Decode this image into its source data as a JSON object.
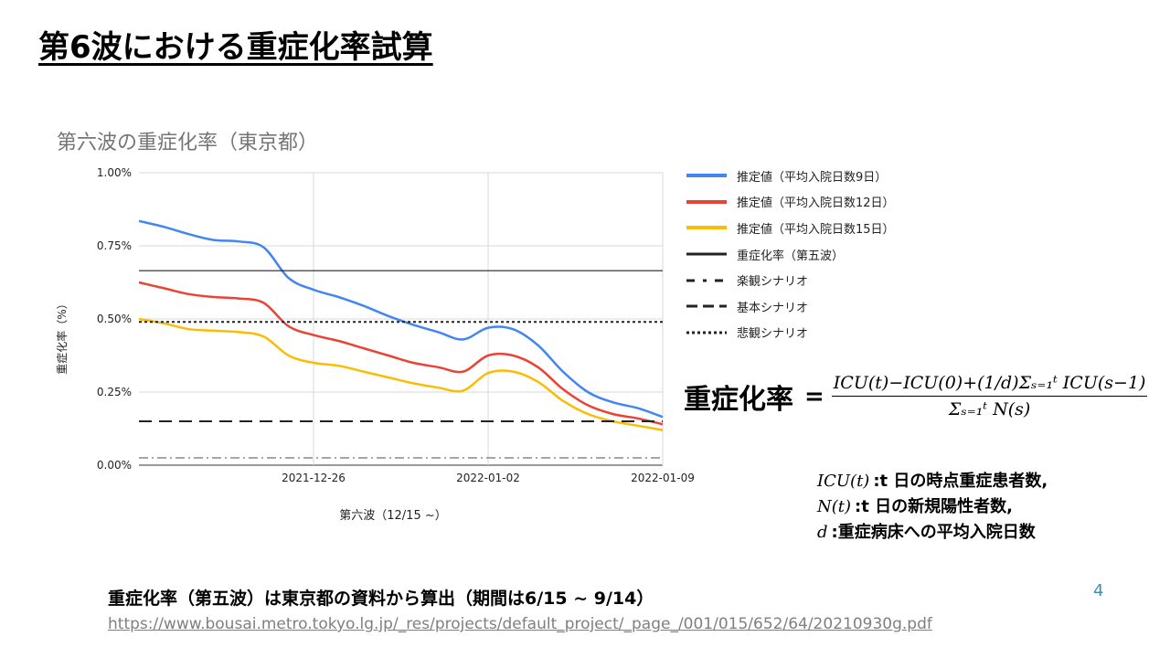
{
  "slide": {
    "title": "第6波における重症化率試算",
    "page_number": "4",
    "note": "重症化率（第五波）は東京都の資料から算出（期間は6/15 ~ 9/14）",
    "source_url": "https://www.bousai.metro.tokyo.lg.jp/_res/projects/default_project/_page_/001/015/652/64/20210930g.pdf"
  },
  "formula": {
    "lhs": "重症化率",
    "equals": "=",
    "numerator": "ICU(t)−ICU(0)+(1/d)Σₛ₌₁ᵗ ICU(s−1)",
    "denominator": "Σₛ₌₁ᵗ N(s)"
  },
  "definitions": [
    {
      "symbol": "ICU(t)",
      "text": ":t 日の時点重症患者数,"
    },
    {
      "symbol": "N(t)",
      "text": ":t 日の新規陽性者数,"
    },
    {
      "symbol": "d",
      "text": ":重症病床への平均入院日数"
    }
  ],
  "colors": {
    "blue": "#4285f4",
    "red": "#ea4335",
    "yellow": "#fbbc04",
    "black": "#222222",
    "grid": "#d9d9d9",
    "dashdot": "#888888"
  },
  "chart_data": {
    "type": "line",
    "title": "第六波の重症化率（東京都）",
    "xlabel": "第六波（12/15 ~）",
    "ylabel": "重症化率（%）",
    "x_range": [
      "2021-12-19",
      "2022-01-09"
    ],
    "x_ticks": [
      "2021-12-26",
      "2022-01-02",
      "2022-01-09"
    ],
    "ylim": [
      0,
      1.0
    ],
    "y_ticks": [
      0,
      0.25,
      0.5,
      0.75,
      1.0
    ],
    "y_tick_labels": [
      "0.00%",
      "0.25%",
      "0.50%",
      "0.75%",
      "1.00%"
    ],
    "grid": true,
    "legend_position": "right",
    "x": [
      "2021-12-19",
      "2021-12-20",
      "2021-12-21",
      "2021-12-22",
      "2021-12-23",
      "2021-12-24",
      "2021-12-25",
      "2021-12-26",
      "2021-12-27",
      "2021-12-28",
      "2021-12-29",
      "2021-12-30",
      "2021-12-31",
      "2022-01-01",
      "2022-01-02",
      "2022-01-03",
      "2022-01-04",
      "2022-01-05",
      "2022-01-06",
      "2022-01-07",
      "2022-01-08",
      "2022-01-09"
    ],
    "series": [
      {
        "name": "推定値（平均入院日数9日）",
        "style": "solid",
        "color": "blue",
        "values": [
          0.835,
          0.815,
          0.79,
          0.77,
          0.765,
          0.745,
          0.64,
          0.6,
          0.575,
          0.545,
          0.51,
          0.48,
          0.455,
          0.43,
          0.47,
          0.465,
          0.41,
          0.32,
          0.25,
          0.215,
          0.195,
          0.165
        ]
      },
      {
        "name": "推定値（平均入院日数12日）",
        "style": "solid",
        "color": "red",
        "values": [
          0.625,
          0.605,
          0.585,
          0.575,
          0.57,
          0.555,
          0.475,
          0.445,
          0.425,
          0.4,
          0.375,
          0.35,
          0.335,
          0.32,
          0.375,
          0.375,
          0.335,
          0.26,
          0.205,
          0.175,
          0.16,
          0.14
        ]
      },
      {
        "name": "推定値（平均入院日数15日）",
        "style": "solid",
        "color": "yellow",
        "values": [
          0.5,
          0.485,
          0.465,
          0.46,
          0.455,
          0.44,
          0.375,
          0.35,
          0.34,
          0.32,
          0.3,
          0.28,
          0.265,
          0.255,
          0.315,
          0.32,
          0.285,
          0.22,
          0.175,
          0.15,
          0.135,
          0.12
        ]
      },
      {
        "name": "重症化率（第五波）",
        "style": "solid",
        "color": "black",
        "constant": 0.665
      },
      {
        "name": "楽観シナリオ",
        "style": "dashed",
        "color": "black",
        "constant": 0.025
      },
      {
        "name": "基本シナリオ",
        "style": "longdash",
        "color": "black",
        "constant": 0.15
      },
      {
        "name": "悲観シナリオ",
        "style": "dotted",
        "color": "black",
        "constant": 0.49
      }
    ]
  }
}
